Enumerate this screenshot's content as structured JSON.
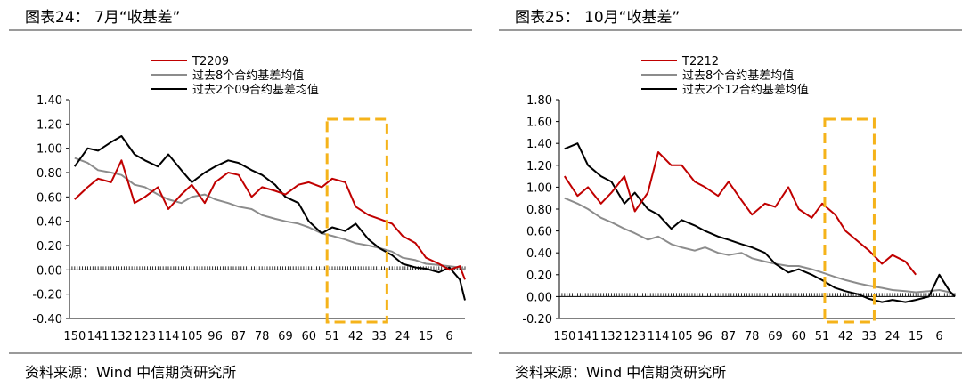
{
  "charts": [
    {
      "title": "图表24： 7月“收基差”",
      "source": "资料来源：Wind 中信期货研究所",
      "legend": [
        "T2209",
        "过去8个合约基差均值",
        "过去2个09合约基差均值"
      ],
      "yticks": [
        "1.40",
        "1.20",
        "1.00",
        "0.80",
        "0.60",
        "0.40",
        "0.20",
        "0.00",
        "-0.20",
        "-0.40"
      ],
      "xticks": [
        "150",
        "141",
        "132",
        "123",
        "114",
        "105",
        "96",
        "87",
        "78",
        "69",
        "60",
        "51",
        "42",
        "33",
        "24",
        "15",
        "6"
      ]
    },
    {
      "title": "图表25： 10月“收基差”",
      "source": "资料来源：Wind 中信期货研究所",
      "legend": [
        "T2212",
        "过去8个合约基差均值",
        "过去2个12合约基差均值"
      ],
      "yticks": [
        "1.80",
        "1.60",
        "1.40",
        "1.20",
        "1.00",
        "0.80",
        "0.60",
        "0.40",
        "0.20",
        "0.00",
        "-0.20"
      ],
      "xticks": [
        "150",
        "141",
        "132",
        "123",
        "114",
        "105",
        "96",
        "87",
        "78",
        "69",
        "60",
        "51",
        "42",
        "33",
        "24",
        "15",
        "6"
      ]
    }
  ],
  "chart_data": [
    {
      "type": "line",
      "title": "图表24： 7月“收基差”",
      "x_reversed": true,
      "xlim": [
        152,
        0
      ],
      "ylim": [
        -0.4,
        1.4
      ],
      "x": [
        150,
        145,
        141,
        136,
        132,
        127,
        123,
        118,
        114,
        109,
        105,
        100,
        96,
        91,
        87,
        82,
        78,
        73,
        69,
        64,
        60,
        55,
        51,
        46,
        42,
        37,
        33,
        28,
        24,
        19,
        15,
        10,
        6,
        2,
        0
      ],
      "series": [
        {
          "name": "T2209",
          "color": "#c00000",
          "values": [
            0.58,
            0.68,
            0.75,
            0.72,
            0.9,
            0.55,
            0.6,
            0.68,
            0.5,
            0.62,
            0.7,
            0.55,
            0.72,
            0.8,
            0.78,
            0.6,
            0.68,
            0.65,
            0.62,
            0.7,
            0.72,
            0.68,
            0.75,
            0.72,
            0.52,
            0.45,
            0.42,
            0.38,
            0.28,
            0.22,
            0.1,
            0.05,
            0.0,
            0.03,
            -0.08
          ]
        },
        {
          "name": "过去8个合约基差均值",
          "color": "#8c8c8c",
          "values": [
            0.92,
            0.88,
            0.82,
            0.8,
            0.78,
            0.7,
            0.68,
            0.62,
            0.58,
            0.55,
            0.6,
            0.62,
            0.58,
            0.55,
            0.52,
            0.5,
            0.45,
            0.42,
            0.4,
            0.38,
            0.35,
            0.3,
            0.28,
            0.25,
            0.22,
            0.2,
            0.18,
            0.15,
            0.1,
            0.08,
            0.05,
            0.04,
            0.03,
            0.02,
            0.0
          ]
        },
        {
          "name": "过去2个09合约基差均值",
          "color": "#000000",
          "values": [
            0.85,
            1.0,
            0.98,
            1.05,
            1.1,
            0.95,
            0.9,
            0.85,
            0.95,
            0.82,
            0.72,
            0.8,
            0.85,
            0.9,
            0.88,
            0.82,
            0.78,
            0.7,
            0.6,
            0.55,
            0.4,
            0.3,
            0.35,
            0.32,
            0.38,
            0.25,
            0.18,
            0.12,
            0.05,
            0.02,
            0.01,
            -0.02,
            0.02,
            -0.08,
            -0.25
          ]
        }
      ],
      "annotation_box_x": [
        53,
        30
      ]
    },
    {
      "type": "line",
      "title": "图表25： 10月“收基差”",
      "x_reversed": true,
      "xlim": [
        152,
        0
      ],
      "ylim": [
        -0.2,
        1.8
      ],
      "x": [
        150,
        145,
        141,
        136,
        132,
        127,
        123,
        118,
        114,
        109,
        105,
        100,
        96,
        91,
        87,
        82,
        78,
        73,
        69,
        64,
        60,
        55,
        51,
        46,
        42,
        37,
        33,
        28,
        24,
        19,
        15,
        10,
        6,
        2,
        0
      ],
      "series": [
        {
          "name": "T2212",
          "color": "#c00000",
          "values": [
            1.1,
            0.92,
            1.0,
            0.85,
            0.95,
            1.1,
            0.78,
            0.95,
            1.32,
            1.2,
            1.2,
            1.05,
            1.0,
            0.92,
            1.05,
            0.88,
            0.75,
            0.85,
            0.82,
            1.0,
            0.8,
            0.72,
            0.85,
            0.75,
            0.6,
            0.5,
            0.42,
            0.3,
            0.38,
            0.32,
            0.2,
            null,
            null,
            null,
            null
          ]
        },
        {
          "name": "过去8个合约基差均值",
          "color": "#8c8c8c",
          "values": [
            0.9,
            0.85,
            0.8,
            0.72,
            0.68,
            0.62,
            0.58,
            0.52,
            0.55,
            0.48,
            0.45,
            0.42,
            0.45,
            0.4,
            0.38,
            0.4,
            0.35,
            0.32,
            0.3,
            0.28,
            0.28,
            0.25,
            0.22,
            0.18,
            0.15,
            0.12,
            0.1,
            0.08,
            0.06,
            0.05,
            0.04,
            0.05,
            0.06,
            0.04,
            0.02
          ]
        },
        {
          "name": "过去2个12合约基差均值",
          "color": "#000000",
          "values": [
            1.35,
            1.4,
            1.2,
            1.1,
            1.05,
            0.85,
            0.95,
            0.8,
            0.75,
            0.62,
            0.7,
            0.65,
            0.6,
            0.55,
            0.52,
            0.48,
            0.45,
            0.4,
            0.3,
            0.22,
            0.25,
            0.2,
            0.15,
            0.08,
            0.05,
            0.02,
            -0.02,
            -0.05,
            -0.03,
            -0.05,
            -0.03,
            0.0,
            0.2,
            0.05,
            0.0
          ]
        }
      ],
      "annotation_box_x": [
        50,
        31
      ]
    }
  ]
}
